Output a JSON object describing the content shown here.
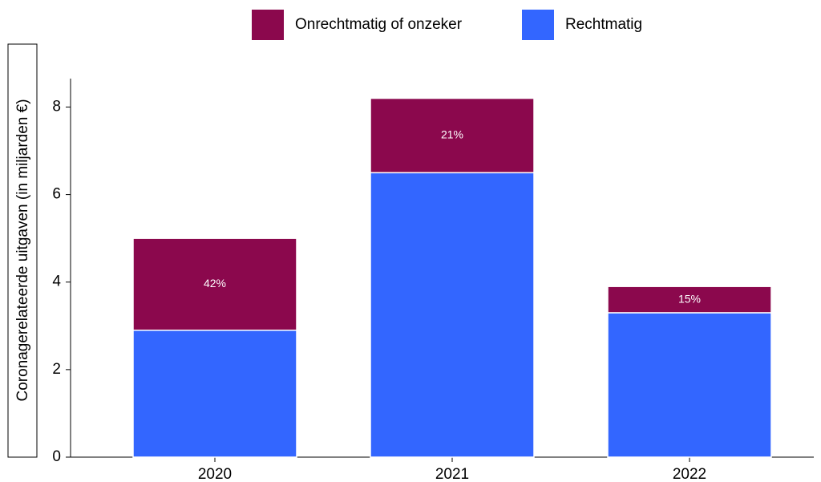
{
  "chart_data": {
    "type": "bar",
    "stacked": true,
    "ylabel": "Coronagerelateerde uitgaven  (in miljarden €)",
    "categories": [
      "2020",
      "2021",
      "2022"
    ],
    "series": [
      {
        "name": "Rechtmatig",
        "color": "#3366ff",
        "values": [
          2.9,
          6.5,
          3.3
        ]
      },
      {
        "name": "Onrechtmatig of onzeker",
        "color": "#8b084d",
        "values": [
          2.1,
          1.7,
          0.6
        ]
      }
    ],
    "annotations": [
      "42%",
      "21%",
      "15%"
    ],
    "ylim": [
      0,
      8.65
    ],
    "yticks": [
      0,
      2,
      4,
      6,
      8
    ],
    "legend": "top"
  }
}
